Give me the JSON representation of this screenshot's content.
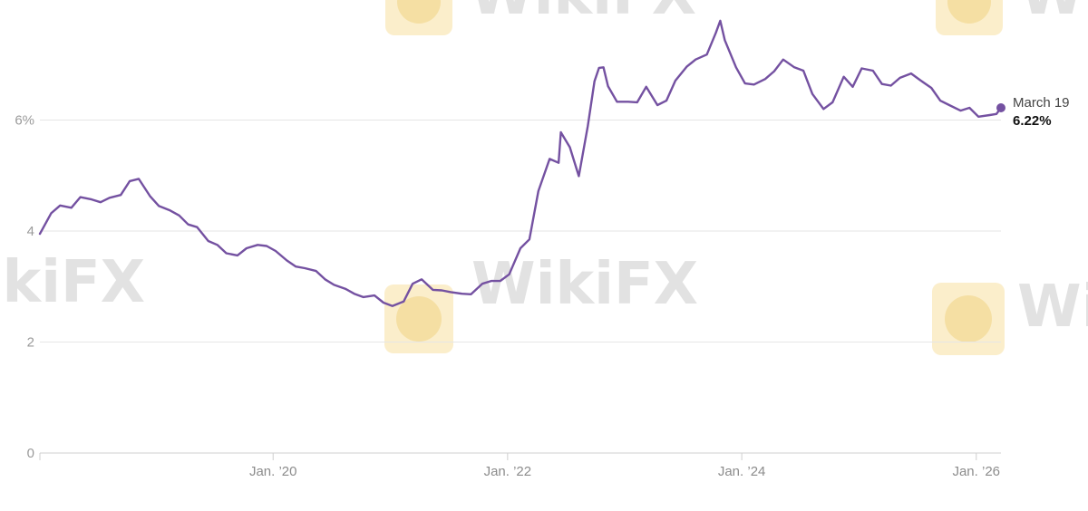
{
  "watermark": {
    "text": "WikiFX",
    "icon": "wikifx-logo-icon"
  },
  "colors": {
    "line": "#7451a1",
    "grid": "#e6e6e6",
    "axis": "#cfcfcf",
    "tick": "#9a9a9a"
  },
  "chart_data": {
    "type": "line",
    "title": "",
    "xlabel": "",
    "ylabel": "",
    "ylim": [
      0,
      8
    ],
    "xlim": [
      "2018-01-04",
      "2026-03-19"
    ],
    "grid": true,
    "y_ticks": [
      {
        "value": 0,
        "label": "0"
      },
      {
        "value": 2,
        "label": "2"
      },
      {
        "value": 4,
        "label": "4"
      },
      {
        "value": 6,
        "label": "6%"
      }
    ],
    "x_ticks": [
      {
        "date": "2020-01-01",
        "label": "Jan. ’20"
      },
      {
        "date": "2022-01-01",
        "label": "Jan. ’22"
      },
      {
        "date": "2024-01-01",
        "label": "Jan. ’24"
      },
      {
        "date": "2026-01-01",
        "label": "Jan. ’26"
      }
    ],
    "series": [
      {
        "x": [
          "2018-01-04",
          "2018-02-08",
          "2018-03-08",
          "2018-04-12",
          "2018-05-10",
          "2018-06-14",
          "2018-07-12",
          "2018-08-09",
          "2018-09-13",
          "2018-10-11",
          "2018-11-08",
          "2018-12-13",
          "2019-01-10",
          "2019-02-14",
          "2019-03-14",
          "2019-04-11",
          "2019-05-09",
          "2019-06-13",
          "2019-07-11",
          "2019-08-08",
          "2019-09-12",
          "2019-10-10",
          "2019-11-14",
          "2019-12-12",
          "2020-01-09",
          "2020-02-13",
          "2020-03-12",
          "2020-04-09",
          "2020-05-14",
          "2020-06-11",
          "2020-07-09",
          "2020-08-13",
          "2020-09-10",
          "2020-10-08",
          "2020-11-12",
          "2020-12-10",
          "2021-01-07",
          "2021-02-11",
          "2021-03-11",
          "2021-04-08",
          "2021-05-13",
          "2021-06-10",
          "2021-07-08",
          "2021-08-12",
          "2021-09-09",
          "2021-10-14",
          "2021-11-11",
          "2021-12-09",
          "2022-01-06",
          "2022-02-10",
          "2022-03-10",
          "2022-04-07",
          "2022-05-12",
          "2022-06-09",
          "2022-06-16",
          "2022-07-14",
          "2022-08-11",
          "2022-09-08",
          "2022-09-29",
          "2022-10-13",
          "2022-10-27",
          "2022-11-10",
          "2022-12-08",
          "2023-01-12",
          "2023-02-09",
          "2023-03-09",
          "2023-04-13",
          "2023-05-11",
          "2023-06-08",
          "2023-07-13",
          "2023-08-10",
          "2023-09-14",
          "2023-10-12",
          "2023-10-26",
          "2023-11-09",
          "2023-12-14",
          "2024-01-11",
          "2024-02-08",
          "2024-03-14",
          "2024-04-11",
          "2024-05-09",
          "2024-06-13",
          "2024-07-11",
          "2024-08-08",
          "2024-09-12",
          "2024-10-10",
          "2024-11-14",
          "2024-12-12",
          "2025-01-09",
          "2025-02-13",
          "2025-03-13",
          "2025-04-10",
          "2025-05-08",
          "2025-06-12",
          "2025-07-10",
          "2025-08-14",
          "2025-09-11",
          "2025-10-09",
          "2025-11-13",
          "2025-12-11",
          "2026-01-08",
          "2026-02-12",
          "2026-03-05",
          "2026-03-19"
        ],
        "y": [
          3.95,
          4.32,
          4.46,
          4.42,
          4.61,
          4.57,
          4.52,
          4.6,
          4.65,
          4.9,
          4.94,
          4.63,
          4.45,
          4.37,
          4.28,
          4.12,
          4.07,
          3.82,
          3.75,
          3.6,
          3.56,
          3.69,
          3.75,
          3.73,
          3.64,
          3.47,
          3.36,
          3.33,
          3.28,
          3.13,
          3.03,
          2.96,
          2.87,
          2.81,
          2.84,
          2.71,
          2.65,
          2.73,
          3.05,
          3.13,
          2.94,
          2.93,
          2.9,
          2.87,
          2.86,
          3.05,
          3.1,
          3.1,
          3.22,
          3.69,
          3.85,
          4.72,
          5.3,
          5.23,
          5.78,
          5.51,
          4.99,
          5.89,
          6.7,
          6.94,
          6.95,
          6.61,
          6.33,
          6.33,
          6.32,
          6.6,
          6.27,
          6.35,
          6.71,
          6.96,
          7.09,
          7.18,
          7.57,
          7.79,
          7.44,
          6.95,
          6.66,
          6.64,
          6.74,
          6.88,
          7.09,
          6.95,
          6.89,
          6.47,
          6.2,
          6.32,
          6.78,
          6.6,
          6.93,
          6.89,
          6.65,
          6.62,
          6.76,
          6.84,
          6.72,
          6.58,
          6.35,
          6.27,
          6.17,
          6.22,
          6.06,
          6.09,
          6.11,
          6.22
        ],
        "color": "#7451a1"
      }
    ],
    "annotation": {
      "date": "2026-03-19",
      "value": 6.22,
      "label": "March 19",
      "value_label": "6.22%"
    }
  }
}
